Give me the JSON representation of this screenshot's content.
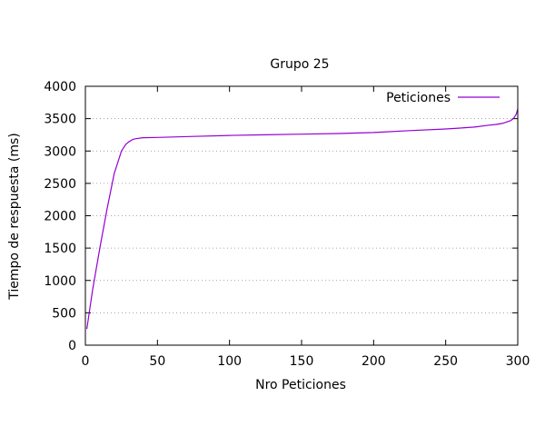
{
  "chart_data": {
    "type": "line",
    "title": "Grupo 25",
    "xlabel": "Nro Peticiones",
    "ylabel": "Tiempo de respuesta (ms)",
    "xlim": [
      0,
      300
    ],
    "ylim": [
      0,
      4000
    ],
    "xticks": [
      0,
      50,
      100,
      150,
      200,
      250,
      300
    ],
    "yticks": [
      0,
      500,
      1000,
      1500,
      2000,
      2500,
      3000,
      3500,
      4000
    ],
    "grid": "horizontal dotted",
    "legend_position": "top-right",
    "series": [
      {
        "name": "Peticiones",
        "color": "#9400d3",
        "x": [
          1,
          5,
          10,
          15,
          20,
          25,
          28,
          30,
          33,
          35,
          40,
          50,
          75,
          100,
          125,
          150,
          175,
          200,
          225,
          250,
          260,
          270,
          280,
          285,
          290,
          295,
          297,
          299,
          300
        ],
        "y": [
          250,
          850,
          1500,
          2100,
          2650,
          3000,
          3100,
          3140,
          3180,
          3190,
          3205,
          3210,
          3225,
          3240,
          3250,
          3260,
          3270,
          3285,
          3315,
          3340,
          3355,
          3370,
          3400,
          3410,
          3430,
          3470,
          3500,
          3570,
          3650
        ]
      }
    ]
  }
}
